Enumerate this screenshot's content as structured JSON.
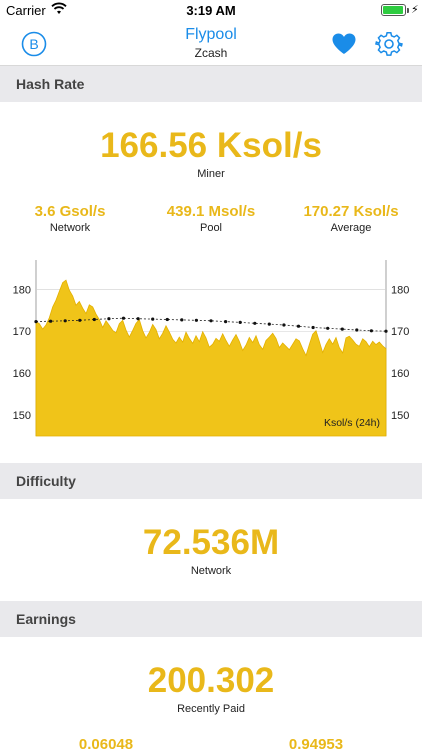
{
  "status": {
    "carrier": "Carrier",
    "time": "3:19 AM",
    "battery_level": 0.95
  },
  "nav": {
    "title": "Flypool",
    "subtitle": "Zcash"
  },
  "hashrate": {
    "header": "Hash Rate",
    "main_value": "166.56 Ksol/s",
    "main_label": "Miner",
    "stats": [
      {
        "value": "3.6 Gsol/s",
        "label": "Network"
      },
      {
        "value": "439.1 Msol/s",
        "label": "Pool"
      },
      {
        "value": "170.27 Ksol/s",
        "label": "Average"
      }
    ]
  },
  "difficulty": {
    "header": "Difficulty",
    "value": "72.536M",
    "label": "Network"
  },
  "earnings": {
    "header": "Earnings",
    "value": "200.302",
    "label": "Recently Paid",
    "partial": [
      "0.06048",
      "0.94953"
    ]
  },
  "colors": {
    "accent": "#e9b81a",
    "link": "#1a8ce8",
    "header_bg": "#e9e9ec"
  },
  "chart_data": {
    "type": "area",
    "unit_label": "Ksol/s (24h)",
    "ylim": [
      145,
      187
    ],
    "y_ticks": [
      150,
      160,
      170,
      180
    ],
    "series": [
      {
        "values": [
          172.3,
          171.8,
          170.5,
          171.5,
          173.2,
          175.8,
          177.4,
          179.5,
          181.6,
          182.2,
          179.8,
          178.4,
          176.2,
          177.1,
          175.5,
          174.2,
          176.3,
          175.8,
          174.1,
          172.8,
          170.9,
          172.5,
          171.4,
          170.2,
          169.6,
          171.8,
          172.6,
          170.3,
          168.6,
          170.2,
          171.9,
          172.8,
          170.1,
          168.4,
          169.7,
          171.6,
          170.4,
          168.2,
          169.5,
          171.3,
          169.8,
          168.1,
          167.2,
          168.6,
          167.4,
          169.8,
          168.3,
          167.1,
          168.9,
          167.5,
          169.9,
          168.4,
          166.2,
          166.9,
          168.3,
          167.6,
          169.4,
          167.8,
          166.4,
          167.9,
          169.2,
          167.6,
          165.4,
          166.7,
          168.5,
          167.3,
          168.9,
          166.8,
          165.7,
          167.8,
          168.6,
          169.5,
          168.3,
          166.1,
          167.2,
          166.4,
          165.6,
          166.9,
          168.2,
          167.7,
          165.8,
          164.2,
          166.8,
          169.3,
          170.1,
          167.6,
          164.9,
          166.8,
          168.2,
          166.9,
          168.5,
          166.1,
          164.8,
          168.4,
          168.8,
          167.9,
          166.9,
          166.4,
          168.2,
          167.5,
          166.3,
          167.6,
          166.8,
          167.4,
          166.5,
          165.8
        ]
      },
      {
        "values": [
          172.3,
          172.4,
          172.5,
          172.6,
          172.8,
          173.0,
          173.1,
          173.0,
          172.9,
          172.8,
          172.7,
          172.6,
          172.5,
          172.3,
          172.1,
          171.9,
          171.7,
          171.5,
          171.2,
          170.9,
          170.7,
          170.5,
          170.3,
          170.1,
          170.0
        ]
      }
    ]
  }
}
